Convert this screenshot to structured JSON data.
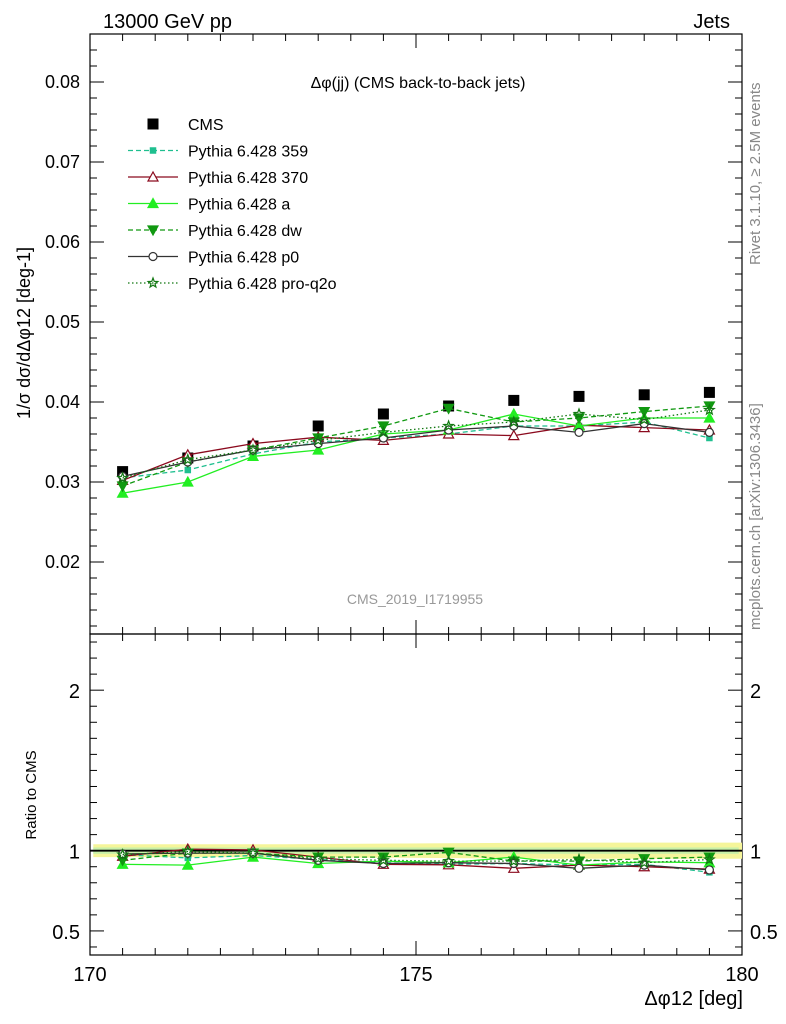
{
  "header": {
    "energy": "13000 GeV pp",
    "category": "Jets"
  },
  "side_labels": {
    "rivet": "Rivet 3.1.10, ≥ 2.5M events",
    "source": "mcplots.cern.ch [arXiv:1306.3436]"
  },
  "watermark": "CMS_2019_I1719955",
  "colors": {
    "cms": "#000000",
    "p359": "#1fbf8f",
    "p370": "#8b0a1e",
    "pa": "#22ee22",
    "pdw": "#119911",
    "pp0": "#333333",
    "pq2o": "#117711",
    "band": "#f5f59a",
    "band_inner": "#c8f0a8"
  },
  "chart_data": [
    {
      "type": "line",
      "title": "Δφ(jj) (CMS back-to-back jets)",
      "ylabel": "1/σ dσ/dΔφ12 [deg-1]",
      "xlim": [
        170,
        180
      ],
      "ylim": [
        0.011,
        0.086
      ],
      "yticks": [
        "0.02",
        "0.03",
        "0.04",
        "0.05",
        "0.06",
        "0.07",
        "0.08"
      ],
      "x": [
        170.5,
        171.5,
        172.5,
        173.5,
        174.5,
        175.5,
        176.5,
        177.5,
        178.5,
        179.5
      ],
      "series": [
        {
          "key": "cms",
          "name": "CMS",
          "marker": "square",
          "values": [
            0.0313,
            0.033,
            0.0345,
            0.037,
            0.0385,
            0.0395,
            0.0402,
            0.0407,
            0.0409,
            0.0412
          ]
        },
        {
          "key": "p359",
          "name": "Pythia 6.428 359",
          "marker": "smallsquare",
          "dash": "dashed",
          "values": [
            0.0305,
            0.0315,
            0.0335,
            0.035,
            0.0355,
            0.036,
            0.037,
            0.037,
            0.0375,
            0.0355
          ]
        },
        {
          "key": "p370",
          "name": "Pythia 6.428 370",
          "marker": "triangle-open",
          "dash": "solid",
          "values": [
            0.0302,
            0.0334,
            0.0348,
            0.0356,
            0.0352,
            0.036,
            0.0358,
            0.0371,
            0.0368,
            0.0365
          ]
        },
        {
          "key": "pa",
          "name": "Pythia 6.428 a",
          "marker": "triangle",
          "dash": "solid",
          "values": [
            0.0286,
            0.03,
            0.0332,
            0.034,
            0.036,
            0.0365,
            0.0385,
            0.037,
            0.038,
            0.038
          ]
        },
        {
          "key": "pdw",
          "name": "Pythia 6.428 dw",
          "marker": "triangle-down",
          "dash": "dashed",
          "values": [
            0.0295,
            0.0325,
            0.034,
            0.0355,
            0.037,
            0.0392,
            0.0375,
            0.038,
            0.0388,
            0.0395
          ]
        },
        {
          "key": "pp0",
          "name": "Pythia 6.428 p0",
          "marker": "circle-open",
          "dash": "solid",
          "values": [
            0.0307,
            0.0325,
            0.034,
            0.0348,
            0.0355,
            0.0365,
            0.037,
            0.0362,
            0.0373,
            0.0362
          ]
        },
        {
          "key": "pq2o",
          "name": "Pythia 6.428 pro-q2o",
          "marker": "star",
          "dash": "dotted",
          "values": [
            0.0305,
            0.0328,
            0.034,
            0.0352,
            0.0362,
            0.037,
            0.0375,
            0.0385,
            0.0378,
            0.039
          ]
        }
      ]
    },
    {
      "type": "line",
      "ylabel": "Ratio to CMS",
      "xlabel": "Δφ12 [deg]",
      "xlim": [
        170,
        180
      ],
      "xticks": [
        "170",
        "175",
        "180"
      ],
      "ylim": [
        0.35,
        2.35
      ],
      "yticks": [
        "0.5",
        "1",
        "2"
      ],
      "band": {
        "x": [
          170,
          173,
          177,
          180
        ],
        "lower": [
          0.96,
          0.96,
          0.95,
          0.95
        ],
        "upper": [
          1.04,
          1.04,
          1.05,
          1.05
        ]
      },
      "x": [
        170.5,
        171.5,
        172.5,
        173.5,
        174.5,
        175.5,
        176.5,
        177.5,
        178.5,
        179.5
      ],
      "series": [
        {
          "key": "cms",
          "name": "CMS",
          "values": [
            1.0,
            1.0,
            1.0,
            1.0,
            1.0,
            1.0,
            1.0,
            1.0,
            1.0,
            1.0
          ]
        },
        {
          "key": "p359",
          "values": [
            0.975,
            0.955,
            0.97,
            0.945,
            0.925,
            0.915,
            0.92,
            0.91,
            0.915,
            0.865
          ]
        },
        {
          "key": "p370",
          "values": [
            0.965,
            1.01,
            1.005,
            0.96,
            0.915,
            0.912,
            0.89,
            0.91,
            0.9,
            0.885
          ]
        },
        {
          "key": "pa",
          "values": [
            0.915,
            0.91,
            0.96,
            0.92,
            0.935,
            0.925,
            0.96,
            0.91,
            0.93,
            0.925
          ]
        },
        {
          "key": "pdw",
          "values": [
            0.94,
            0.985,
            0.985,
            0.96,
            0.96,
            0.99,
            0.935,
            0.935,
            0.95,
            0.96
          ]
        },
        {
          "key": "pp0",
          "values": [
            0.98,
            0.985,
            0.985,
            0.94,
            0.92,
            0.925,
            0.92,
            0.89,
            0.91,
            0.88
          ]
        },
        {
          "key": "pq2o",
          "values": [
            0.975,
            0.995,
            0.985,
            0.95,
            0.94,
            0.935,
            0.935,
            0.945,
            0.925,
            0.945
          ]
        }
      ]
    }
  ]
}
